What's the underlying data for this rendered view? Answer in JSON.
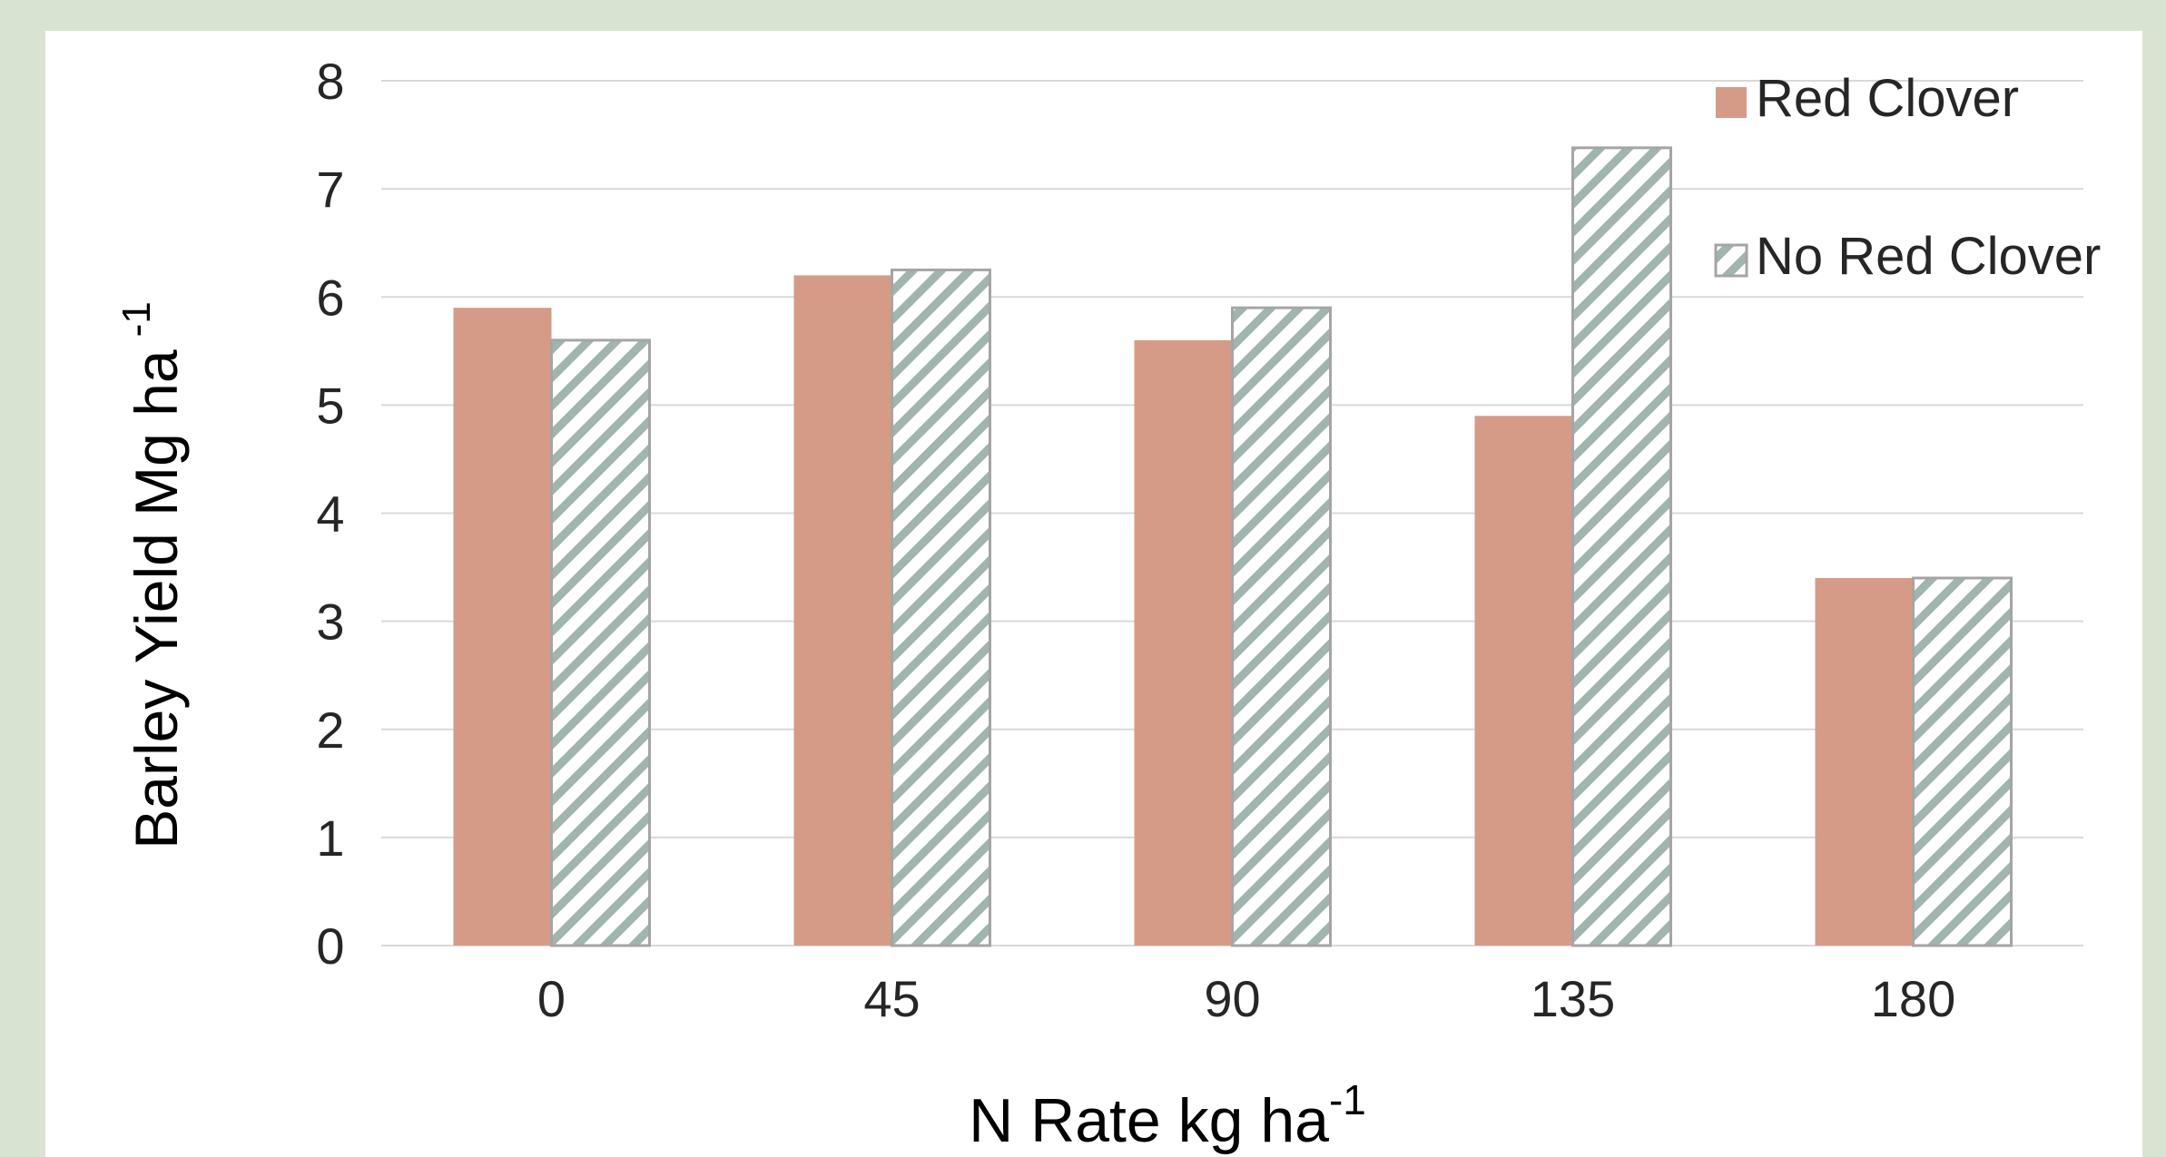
{
  "chart_data": {
    "type": "bar",
    "categories": [
      "0",
      "45",
      "90",
      "135",
      "180"
    ],
    "series": [
      {
        "name": "Red Clover",
        "values": [
          5.9,
          6.2,
          5.6,
          4.9,
          3.4
        ],
        "color": "#d59b87",
        "pattern": "solid"
      },
      {
        "name": "No Red Clover",
        "values": [
          5.6,
          6.25,
          5.9,
          7.38,
          3.4
        ],
        "color": "#9fb5ae",
        "pattern": "diagonal-hatch"
      }
    ],
    "ylim": [
      0,
      8
    ],
    "yticks": [
      "0",
      "1",
      "2",
      "3",
      "4",
      "5",
      "6",
      "7",
      "8"
    ],
    "ylabel": {
      "main": "Barley Yield Mg ha",
      "sup": "-1"
    },
    "xlabel": {
      "main": "N Rate kg ha",
      "sup": "-1"
    },
    "grid": true,
    "legend_position": "top-right",
    "colors": {
      "gridline": "#d9d9d9",
      "tick_text": "#262626",
      "hatch_border": "#a5a5a5"
    }
  }
}
